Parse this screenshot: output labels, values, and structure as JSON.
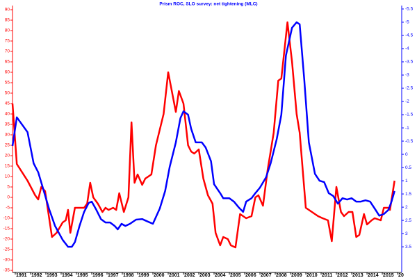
{
  "chart_data": {
    "type": "line",
    "title": "Prism ROC, SLO survey: net tightening (MLC)",
    "xlim": [
      1990.82,
      2016.27
    ],
    "xticks": [
      1991,
      1992,
      1993,
      1994,
      1995,
      1996,
      1997,
      1998,
      1999,
      2000,
      2001,
      2002,
      2003,
      2004,
      2005,
      2006,
      2007,
      2008,
      2009,
      2010,
      2011,
      2012,
      2013,
      2014,
      2015,
      {
        "value": 2016,
        "label": "20"
      }
    ],
    "ylim": [
      -36,
      92
    ],
    "yticks": [
      -35,
      -30,
      -25,
      -20,
      -15,
      -10,
      -5,
      0,
      5,
      10,
      15,
      20,
      25,
      30,
      35,
      40,
      45,
      50,
      55,
      60,
      65,
      70,
      75,
      80,
      85,
      90
    ],
    "yaxis_color": "#ff0000",
    "y2lim": [
      -5.63,
      4.47
    ],
    "y2_inverted": true,
    "y2axis_color": "#0000ff",
    "y2ticks": [
      -5.5,
      -5,
      -4.5,
      -4,
      -3.5,
      -3,
      -2.5,
      -2,
      -1.5,
      -1,
      -0.5,
      0,
      0.5,
      1,
      1.5,
      2,
      2.5,
      3,
      3.5
    ],
    "grid": false,
    "series": [
      {
        "color": "#ff0000",
        "axis": "y",
        "x": [
          1990.82,
          1991.1,
          1991.8,
          1992.3,
          1992.5,
          1992.7,
          1992.95,
          1993.4,
          1993.7,
          1994.1,
          1994.3,
          1994.45,
          1994.6,
          1994.9,
          1995.2,
          1995.5,
          1995.7,
          1995.9,
          1996.1,
          1996.4,
          1996.7,
          1996.9,
          1997.1,
          1997.4,
          1997.6,
          1997.8,
          1998.1,
          1998.4,
          1998.6,
          1998.8,
          1999,
          1999.3,
          1999.5,
          1999.9,
          2000.2,
          2000.7,
          2001,
          2001.5,
          2001.7,
          2002,
          2002.3,
          2002.5,
          2002.7,
          2003,
          2003.3,
          2003.6,
          2003.9,
          2004.1,
          2004.4,
          2004.6,
          2004.9,
          2005.1,
          2005.4,
          2005.7,
          2006.1,
          2006.45,
          2006.7,
          2006.9,
          2007.2,
          2007.5,
          2007.9,
          2008.2,
          2008.4,
          2008.8,
          2009.1,
          2009.4,
          2009.6,
          2010,
          2010.4,
          2010.8,
          2011.1,
          2011.45,
          2011.7,
          2012,
          2012.3,
          2012.5,
          2012.8,
          2013.05,
          2013.3,
          2013.5,
          2013.8,
          2014,
          2014.3,
          2014.5,
          2014.9,
          2015.1,
          2015.4,
          2015.5,
          2015.8
        ],
        "values": [
          45,
          16,
          8,
          1,
          -1,
          5,
          3,
          -19,
          -17,
          -12,
          -11,
          -6,
          -17,
          -5,
          -5,
          -5,
          -3,
          7,
          0,
          -3,
          -7,
          -5,
          -6,
          -5,
          -6,
          2,
          -7,
          0,
          36,
          7,
          11,
          6,
          9,
          11,
          25,
          40,
          60,
          41,
          51,
          45,
          25,
          22,
          21,
          23,
          9,
          1,
          -3,
          -17,
          -23,
          -19,
          -20,
          -23,
          -24,
          -8,
          -10,
          -9,
          0,
          1,
          -4,
          13,
          31,
          56,
          57,
          84,
          65,
          40,
          31,
          -5,
          -7,
          -9,
          -10,
          -11,
          -21,
          5,
          -7,
          -9,
          -7,
          -7,
          -19,
          -18,
          -8,
          -13,
          -11,
          -10,
          -11,
          -5,
          -5,
          -6,
          8
        ]
      },
      {
        "color": "#0000ff",
        "axis": "y2",
        "x": [
          1990.82,
          1991.1,
          1991.8,
          1992.2,
          1992.5,
          1992.8,
          1993.2,
          1993.6,
          1994.1,
          1994.45,
          1994.7,
          1994.9,
          1995.2,
          1995.5,
          1995.8,
          1996,
          1996.3,
          1996.6,
          1996.9,
          1997.2,
          1997.5,
          1997.7,
          1997.95,
          1998.2,
          1998.5,
          1998.9,
          1999.3,
          1999.6,
          2000,
          2000.45,
          2000.8,
          2001.1,
          2001.5,
          2001.8,
          2002,
          2002.3,
          2002.5,
          2002.8,
          2003.2,
          2003.45,
          2003.8,
          2004,
          2004.4,
          2004.6,
          2005,
          2005.3,
          2005.6,
          2005.9,
          2006.1,
          2006.45,
          2006.7,
          2007,
          2007.4,
          2007.7,
          2008.1,
          2008.4,
          2008.7,
          2009.1,
          2009.4,
          2009.6,
          2009.9,
          2010.2,
          2010.6,
          2010.9,
          2011.2,
          2011.5,
          2011.8,
          2012.1,
          2012.4,
          2012.7,
          2013,
          2013.3,
          2013.6,
          2013.9,
          2014.2,
          2014.5,
          2014.8,
          2015.1,
          2015.4,
          2015.6,
          2015.8
        ],
        "values": [
          -0.32,
          -1.4,
          -0.84,
          0.34,
          0.68,
          1.26,
          2.05,
          2.71,
          3.24,
          3.5,
          3.5,
          3.32,
          2.71,
          2.18,
          1.84,
          1.79,
          2.1,
          2.45,
          2.58,
          2.58,
          2.71,
          2.84,
          2.63,
          2.71,
          2.63,
          2.47,
          2.45,
          2.53,
          2.63,
          2.05,
          1.39,
          0.47,
          -0.45,
          -1.37,
          -1.63,
          -1.5,
          -0.97,
          -0.45,
          -0.45,
          -0.26,
          0.26,
          1.13,
          1.47,
          1.66,
          1.66,
          1.79,
          2,
          2.18,
          1.79,
          1.66,
          1.47,
          1.26,
          0.87,
          0.34,
          -0.58,
          -1.5,
          -3.74,
          -4.79,
          -5,
          -4.92,
          -2.82,
          -0.45,
          0.74,
          1,
          1.05,
          1.47,
          1.58,
          1.87,
          1.66,
          1.71,
          1.66,
          1.79,
          1.79,
          1.74,
          1.79,
          2.05,
          2.32,
          2.26,
          2.1,
          1.79,
          1.39
        ]
      }
    ]
  }
}
